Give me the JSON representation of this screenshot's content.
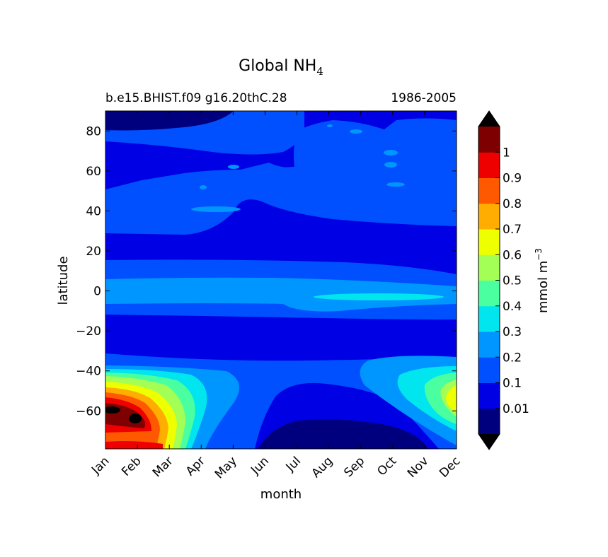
{
  "chart_data": {
    "type": "heatmap",
    "title": "Global NH",
    "title_subscript": "4",
    "subtitle_left": "b.e15.BHIST.f09 g16.20thC.28",
    "subtitle_right": "1986-2005",
    "xlabel": "month",
    "ylabel": "latitude",
    "x_ticks": [
      "Jan",
      "Feb",
      "Mar",
      "Apr",
      "May",
      "Jun",
      "Jul",
      "Aug",
      "Sep",
      "Oct",
      "Nov",
      "Dec"
    ],
    "y_ticks": [
      80,
      60,
      40,
      20,
      0,
      -20,
      -40,
      -60
    ],
    "y_tick_labels": [
      "80",
      "60",
      "40",
      "20",
      "0",
      "−20",
      "−40",
      "−60"
    ],
    "ylim": [
      -79,
      90
    ],
    "colorbar": {
      "label": "mmol m",
      "label_sup": "−3",
      "tick_labels": [
        "1",
        "0.9",
        "0.8",
        "0.7",
        "0.6",
        "0.5",
        "0.4",
        "0.3",
        "0.2",
        "0.1",
        "0.01"
      ],
      "levels": [
        0,
        0.01,
        0.1,
        0.2,
        0.3,
        0.4,
        0.5,
        0.6,
        0.7,
        0.8,
        0.9,
        1,
        1.1
      ],
      "colors": [
        "#00007f",
        "#0000e5",
        "#0050ff",
        "#0096ff",
        "#00e5ee",
        "#4aff9f",
        "#a3ff56",
        "#eeff00",
        "#ffad00",
        "#ff5900",
        "#ee0000",
        "#7f0000"
      ],
      "extend": "both",
      "extend_color": "#000000"
    },
    "bands": [
      {
        "region": "Northern high latitudes (65 to 90)",
        "month_range": "Jan-Dec",
        "value_range": [
          0.1,
          0.2
        ],
        "note": "below 0.1 near 90N in Jan-Mar"
      },
      {
        "region": "Northern mid latitudes (30 to 65)",
        "month_range": "Jan-Dec",
        "value_range": [
          0.1,
          0.2
        ]
      },
      {
        "region": "Northern subtropics (15 to 30)",
        "month_range": "Jan-Dec",
        "value_range": [
          0.01,
          0.1
        ]
      },
      {
        "region": "Equatorial band (-7 to 15)",
        "month_range": "Jan-Dec",
        "value_range": [
          0.2,
          0.3
        ],
        "note": "0.3-0.4 near -3 from Aug to Nov"
      },
      {
        "region": "Southern subtropics (-35 to -12)",
        "month_range": "Jan-Dec",
        "value_range": [
          0.01,
          0.1
        ]
      },
      {
        "region": "Southern mid latitudes (-79 to -35)",
        "month_range": "Jan-Mar",
        "value_range": [
          0.3,
          1.1
        ],
        "note": "peak above 1 near -62 in Feb"
      },
      {
        "region": "Southern mid latitudes (-79 to -35)",
        "month_range": "Oct-Dec",
        "value_range": [
          0.3,
          0.7
        ],
        "note": "peak near -55 in Dec"
      },
      {
        "region": "Southern high latitudes (-79 to -60)",
        "month_range": "Jun-Oct",
        "value_range": [
          0,
          0.01
        ]
      }
    ]
  }
}
